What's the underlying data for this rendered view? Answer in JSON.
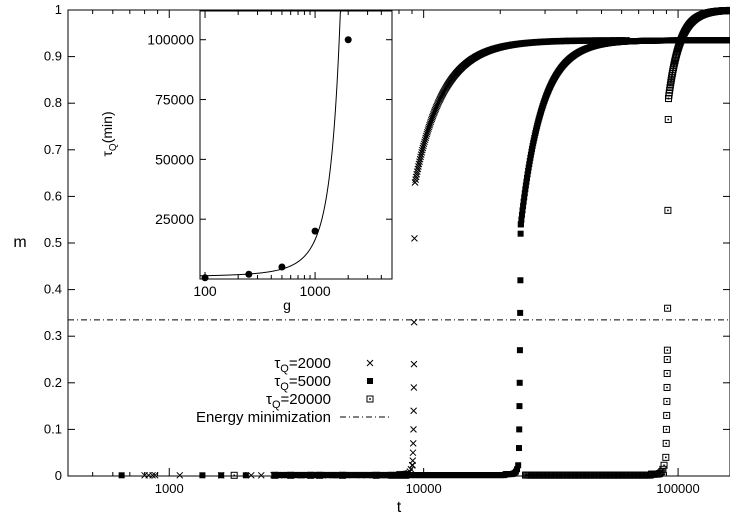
{
  "chart_data": [
    {
      "type": "scatter",
      "xlabel": "t",
      "ylabel": "m",
      "xscale": "log",
      "xlim": [
        400,
        160000
      ],
      "ylim": [
        0,
        1
      ],
      "xticks": [
        1000,
        10000,
        100000
      ],
      "xtick_labels": [
        "1000",
        "10000",
        "100000"
      ],
      "yticks": [
        0,
        0.1,
        0.2,
        0.3,
        0.4,
        0.5,
        0.6,
        0.7,
        0.8,
        0.9,
        1
      ],
      "ytick_labels": [
        "0",
        "0.1",
        "0.2",
        "0.3",
        "0.4",
        "0.5",
        "0.6",
        "0.7",
        "0.8",
        "0.9",
        "1"
      ],
      "legend_position": "center-left",
      "series": [
        {
          "name_base": "τ",
          "name_sub": "Q",
          "name_tail": "=2000",
          "marker": "cross",
          "scattered_low": [
            800,
            830,
            860,
            880,
            1100,
            1600,
            2100,
            2300,
            2600,
            2700,
            3300,
            3700,
            4200,
            5000,
            5700,
            6300
          ],
          "tc": 9000,
          "rise": [
            [
              9050,
              0.023
            ],
            [
              9060,
              0.033
            ],
            [
              9080,
              0.05
            ],
            [
              9100,
              0.07
            ],
            [
              9120,
              0.1
            ],
            [
              9135,
              0.14
            ],
            [
              9150,
              0.19
            ],
            [
              9160,
              0.24
            ],
            [
              9170,
              0.33
            ],
            [
              9200,
              0.51
            ],
            [
              9250,
              0.63
            ]
          ],
          "m_final": 0.935
        },
        {
          "name_base": "τ",
          "name_sub": "Q",
          "name_tail": "=5000",
          "marker": "filled-square",
          "scattered_low": [
            650,
            1350,
            1600,
            2000,
            2600,
            3300,
            4500
          ],
          "tc": 23500,
          "rise": [
            [
              23700,
              0.06
            ],
            [
              23750,
              0.1
            ],
            [
              23800,
              0.15
            ],
            [
              23850,
              0.2
            ],
            [
              23900,
              0.27
            ],
            [
              23950,
              0.35
            ],
            [
              24000,
              0.42
            ],
            [
              24050,
              0.52
            ],
            [
              24100,
              0.54
            ]
          ],
          "m_final": 0.935
        },
        {
          "name_base": "τ",
          "name_sub": "Q",
          "name_tail": "=20000",
          "marker": "open-square",
          "scattered_low": [
            1800,
            2600,
            3000,
            3600,
            3900,
            4800,
            6500,
            7500,
            8000,
            8500
          ],
          "tc": 88000,
          "rise": [
            [
              89500,
              0.04
            ],
            [
              89800,
              0.07
            ],
            [
              90000,
              0.1
            ],
            [
              90200,
              0.13
            ],
            [
              90350,
              0.16
            ],
            [
              90500,
              0.19
            ],
            [
              90600,
              0.22
            ],
            [
              90700,
              0.25
            ],
            [
              90800,
              0.27
            ],
            [
              90950,
              0.36
            ],
            [
              91200,
              0.57
            ],
            [
              91500,
              0.765
            ],
            [
              91700,
              0.81
            ]
          ],
          "m_final": 1.0
        }
      ],
      "reference_line": {
        "label": "Energy minimization",
        "y": 0.335,
        "style": "dash-dot"
      }
    },
    {
      "type": "scatter",
      "inset": true,
      "xlabel": "g",
      "ylabel_base": "τ",
      "ylabel_sub": "Q",
      "ylabel_tail": "(min)",
      "xscale": "log",
      "xlim": [
        90,
        5000
      ],
      "ylim": [
        0,
        112000
      ],
      "xticks": [
        100,
        1000
      ],
      "xtick_labels": [
        "100",
        "1000"
      ],
      "yticks": [
        25000,
        50000,
        75000,
        100000
      ],
      "ytick_labels": [
        "25000",
        "50000",
        "75000",
        "100000"
      ],
      "points": [
        {
          "x": 100,
          "y": 500
        },
        {
          "x": 250,
          "y": 2000
        },
        {
          "x": 500,
          "y": 5000
        },
        {
          "x": 1000,
          "y": 20000
        },
        {
          "x": 2000,
          "y": 100000
        }
      ],
      "fit_curve": {
        "type": "exponential",
        "a": 1050,
        "b": 0.00275,
        "c": 0
      }
    }
  ]
}
